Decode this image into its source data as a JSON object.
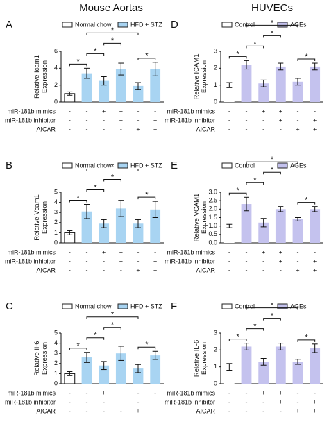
{
  "headers": [
    "Mouse Aortas",
    "HUVECs"
  ],
  "chart_data": [
    {
      "type": "bar",
      "panel_label": "A",
      "ylabel": "Relative Icam1 Expression",
      "categories": [
        null,
        null,
        null,
        null,
        null,
        null
      ],
      "series": [
        {
          "name": "Normal chow",
          "color": "#ffffff",
          "values": [
            1.0,
            null,
            null,
            null,
            null,
            null
          ],
          "errors": [
            0.2,
            null,
            null,
            null,
            null,
            null
          ]
        },
        {
          "name": "HFD + STZ",
          "color": "#a8d4f2",
          "values": [
            null,
            3.4,
            2.5,
            3.9,
            1.9,
            3.9
          ],
          "errors": [
            null,
            0.6,
            0.5,
            0.7,
            0.4,
            0.8
          ]
        }
      ],
      "ylim": [
        0,
        6
      ],
      "yticks": [
        0,
        2,
        4,
        6
      ],
      "comparisons": [
        {
          "bars": [
            0,
            1
          ],
          "label": "*"
        },
        {
          "bars": [
            1,
            2
          ],
          "label": "*"
        },
        {
          "bars": [
            2,
            3
          ],
          "label": "*"
        },
        {
          "bars": [
            4,
            5
          ],
          "label": "*"
        },
        {
          "bars": [
            1,
            4
          ],
          "label": "*"
        }
      ],
      "treatments": [
        {
          "label": "miR-181b mimics",
          "signs": [
            "-",
            "-",
            "+",
            "+",
            "-",
            "-"
          ]
        },
        {
          "label": "miR-181b inhibitor",
          "signs": [
            "-",
            "-",
            "-",
            "+",
            "-",
            "+"
          ]
        },
        {
          "label": "AICAR",
          "signs": [
            "-",
            "-",
            "-",
            "-",
            "+",
            "+"
          ]
        }
      ]
    },
    {
      "type": "bar",
      "panel_label": "B",
      "ylabel": "Relative Vcam1 Expression",
      "categories": [
        null,
        null,
        null,
        null,
        null,
        null
      ],
      "series": [
        {
          "name": "Normal chow",
          "color": "#ffffff",
          "values": [
            1.0,
            null,
            null,
            null,
            null,
            null
          ],
          "errors": [
            0.2,
            null,
            null,
            null,
            null,
            null
          ]
        },
        {
          "name": "HFD + STZ",
          "color": "#a8d4f2",
          "values": [
            null,
            3.1,
            1.9,
            3.4,
            1.9,
            3.3
          ],
          "errors": [
            null,
            0.7,
            0.4,
            0.8,
            0.4,
            0.8
          ]
        }
      ],
      "ylim": [
        0,
        5
      ],
      "yticks": [
        0,
        1,
        2,
        3,
        4,
        5
      ],
      "comparisons": [
        {
          "bars": [
            0,
            1
          ],
          "label": "*"
        },
        {
          "bars": [
            1,
            2
          ],
          "label": "*"
        },
        {
          "bars": [
            2,
            3
          ],
          "label": "*"
        },
        {
          "bars": [
            4,
            5
          ],
          "label": "*"
        },
        {
          "bars": [
            1,
            4
          ],
          "label": "*"
        }
      ],
      "treatments": [
        {
          "label": "miR-181b mimics",
          "signs": [
            "-",
            "-",
            "+",
            "+",
            "-",
            "-"
          ]
        },
        {
          "label": "miR-181b inhibitor",
          "signs": [
            "-",
            "-",
            "-",
            "+",
            "-",
            "+"
          ]
        },
        {
          "label": "AICAR",
          "signs": [
            "-",
            "-",
            "-",
            "-",
            "+",
            "+"
          ]
        }
      ]
    },
    {
      "type": "bar",
      "panel_label": "C",
      "ylabel": "Relative Il-6 Expression",
      "categories": [
        null,
        null,
        null,
        null,
        null,
        null
      ],
      "series": [
        {
          "name": "Normal chow",
          "color": "#ffffff",
          "values": [
            1.0,
            null,
            null,
            null,
            null,
            null
          ],
          "errors": [
            0.2,
            null,
            null,
            null,
            null,
            null
          ]
        },
        {
          "name": "HFD + STZ",
          "color": "#a8d4f2",
          "values": [
            null,
            2.6,
            1.8,
            3.0,
            1.5,
            2.8
          ],
          "errors": [
            null,
            0.5,
            0.4,
            0.7,
            0.4,
            0.4
          ]
        }
      ],
      "ylim": [
        0,
        5
      ],
      "yticks": [
        0,
        1,
        2,
        3,
        4,
        5
      ],
      "comparisons": [
        {
          "bars": [
            0,
            1
          ],
          "label": "*"
        },
        {
          "bars": [
            1,
            2
          ],
          "label": "*"
        },
        {
          "bars": [
            2,
            3
          ],
          "label": "*"
        },
        {
          "bars": [
            4,
            5
          ],
          "label": "*"
        },
        {
          "bars": [
            1,
            4
          ],
          "label": "*"
        }
      ],
      "treatments": [
        {
          "label": "miR-181b mimics",
          "signs": [
            "-",
            "-",
            "+",
            "+",
            "-",
            "-"
          ]
        },
        {
          "label": "miR-181b inhibitor",
          "signs": [
            "-",
            "-",
            "-",
            "+",
            "-",
            "+"
          ]
        },
        {
          "label": "AICAR",
          "signs": [
            "-",
            "-",
            "-",
            "-",
            "+",
            "+"
          ]
        }
      ]
    },
    {
      "type": "bar",
      "panel_label": "D",
      "ylabel": "Relative ICAM1 Expression",
      "categories": [
        null,
        null,
        null,
        null,
        null,
        null
      ],
      "series": [
        {
          "name": "Control",
          "color": "#ffffff",
          "values": [
            1.0,
            null,
            null,
            null,
            null,
            null
          ],
          "errors": [
            0.15,
            null,
            null,
            null,
            null,
            null
          ]
        },
        {
          "name": "AGEs",
          "color": "#c4c2ee",
          "values": [
            null,
            2.2,
            1.1,
            2.1,
            1.2,
            2.1
          ],
          "errors": [
            null,
            0.25,
            0.2,
            0.2,
            0.2,
            0.2
          ]
        }
      ],
      "ylim": [
        0,
        3
      ],
      "yticks": [
        0,
        1,
        2,
        3
      ],
      "comparisons": [
        {
          "bars": [
            0,
            1
          ],
          "label": "*"
        },
        {
          "bars": [
            1,
            2
          ],
          "label": "*"
        },
        {
          "bars": [
            2,
            3
          ],
          "label": "*"
        },
        {
          "bars": [
            4,
            5
          ],
          "label": "*"
        },
        {
          "bars": [
            1,
            4
          ],
          "label": "*"
        }
      ],
      "treatments": [
        {
          "label": "miR-181b mimics",
          "signs": [
            "-",
            "-",
            "+",
            "+",
            "-",
            "-"
          ]
        },
        {
          "label": "miR-181b inhibitor",
          "signs": [
            "-",
            "-",
            "-",
            "+",
            "-",
            "+"
          ]
        },
        {
          "label": "AICAR",
          "signs": [
            "-",
            "-",
            "-",
            "-",
            "+",
            "+"
          ]
        }
      ]
    },
    {
      "type": "bar",
      "panel_label": "E",
      "ylabel": "Relative VCAM1 Expression",
      "categories": [
        null,
        null,
        null,
        null,
        null,
        null
      ],
      "series": [
        {
          "name": "Control",
          "color": "#ffffff",
          "values": [
            1.0,
            null,
            null,
            null,
            null,
            null
          ],
          "errors": [
            0.1,
            null,
            null,
            null,
            null,
            null
          ]
        },
        {
          "name": "AGEs",
          "color": "#c4c2ee",
          "values": [
            null,
            2.3,
            1.2,
            2.0,
            1.4,
            2.0
          ],
          "errors": [
            null,
            0.4,
            0.25,
            0.15,
            0.1,
            0.15
          ]
        }
      ],
      "ylim": [
        0,
        3
      ],
      "yticks": [
        {
          "value": 0,
          "label": "0.0"
        },
        0.5,
        {
          "value": 1,
          "label": "1.0"
        },
        1.5,
        {
          "value": 2,
          "label": "2.0"
        },
        2.5,
        {
          "value": 3,
          "label": "3.0"
        }
      ],
      "comparisons": [
        {
          "bars": [
            0,
            1
          ],
          "label": "*"
        },
        {
          "bars": [
            1,
            2
          ],
          "label": "*"
        },
        {
          "bars": [
            2,
            3
          ],
          "label": "*"
        },
        {
          "bars": [
            4,
            5
          ],
          "label": "*"
        },
        {
          "bars": [
            1,
            4
          ],
          "label": "*"
        }
      ],
      "treatments": [
        {
          "label": "miR-181b mimics",
          "signs": [
            "-",
            "-",
            "+",
            "+",
            "-",
            "-"
          ]
        },
        {
          "label": "miR-181b inhibitor",
          "signs": [
            "-",
            "-",
            "-",
            "+",
            "-",
            "+"
          ]
        },
        {
          "label": "AICAR",
          "signs": [
            "-",
            "-",
            "-",
            "-",
            "+",
            "+"
          ]
        }
      ]
    },
    {
      "type": "bar",
      "panel_label": "F",
      "ylabel": "Relative IL-6 Expression",
      "categories": [
        null,
        null,
        null,
        null,
        null,
        null
      ],
      "series": [
        {
          "name": "Control",
          "color": "#ffffff",
          "values": [
            1.0,
            null,
            null,
            null,
            null,
            null
          ],
          "errors": [
            0.2,
            null,
            null,
            null,
            null,
            null
          ]
        },
        {
          "name": "AGEs",
          "color": "#c4c2ee",
          "values": [
            null,
            2.2,
            1.3,
            2.2,
            1.3,
            2.1
          ],
          "errors": [
            null,
            0.2,
            0.2,
            0.2,
            0.15,
            0.25
          ]
        }
      ],
      "ylim": [
        0,
        3
      ],
      "yticks": [
        0,
        1,
        2,
        3
      ],
      "comparisons": [
        {
          "bars": [
            0,
            1
          ],
          "label": "*"
        },
        {
          "bars": [
            1,
            2
          ],
          "label": "*"
        },
        {
          "bars": [
            2,
            3
          ],
          "label": "*"
        },
        {
          "bars": [
            4,
            5
          ],
          "label": "*"
        },
        {
          "bars": [
            1,
            4
          ],
          "label": "*"
        }
      ],
      "treatments": [
        {
          "label": "miR-181b mimics",
          "signs": [
            "-",
            "-",
            "+",
            "+",
            "-",
            "-"
          ]
        },
        {
          "label": "miR-181b inhibitor",
          "signs": [
            "-",
            "-",
            "-",
            "+",
            "-",
            "+"
          ]
        },
        {
          "label": "AICAR",
          "signs": [
            "-",
            "-",
            "-",
            "-",
            "+",
            "+"
          ]
        }
      ]
    }
  ]
}
